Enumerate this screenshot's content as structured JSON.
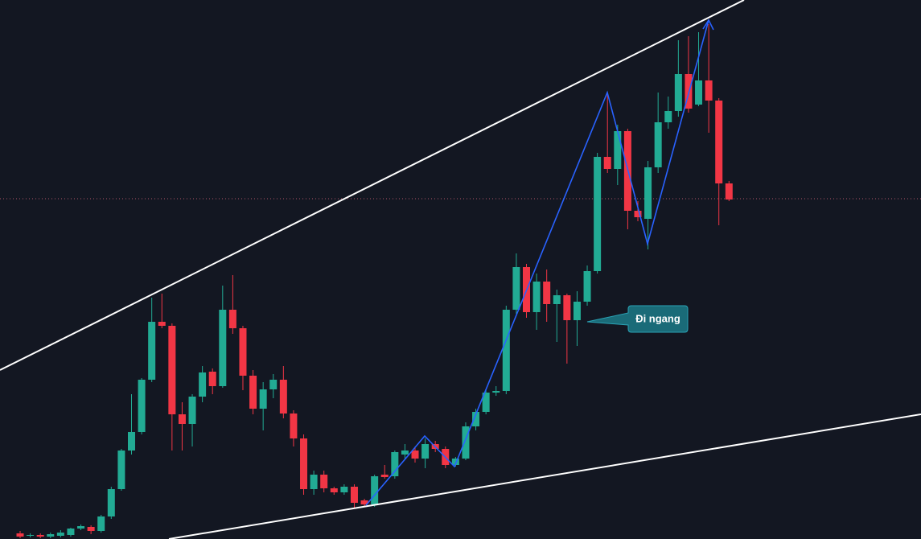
{
  "chart_data": {
    "type": "candlestick",
    "open": [
      7,
      4,
      5,
      3,
      4,
      5,
      13,
      15,
      10,
      28,
      62,
      110,
      133,
      198,
      270,
      265,
      155,
      143,
      177,
      208,
      190,
      285,
      262,
      203,
      162,
      186,
      198,
      156,
      125,
      62,
      80,
      63,
      58,
      65,
      48,
      43,
      80,
      78,
      105,
      110,
      100,
      118,
      112,
      92,
      100,
      140,
      158,
      182,
      184,
      285,
      338,
      282,
      320,
      292,
      303,
      272,
      295,
      333,
      475,
      460,
      507,
      408,
      398,
      462,
      518,
      532,
      578,
      540,
      570,
      545,
      442
    ],
    "high": [
      10,
      7,
      7,
      8,
      11,
      14,
      18,
      17,
      30,
      65,
      112,
      180,
      200,
      300,
      305,
      268,
      170,
      180,
      215,
      212,
      315,
      328,
      265,
      210,
      195,
      205,
      215,
      160,
      130,
      85,
      85,
      65,
      68,
      68,
      50,
      80,
      92,
      110,
      118,
      115,
      125,
      122,
      115,
      102,
      145,
      162,
      185,
      190,
      290,
      355,
      342,
      330,
      335,
      310,
      305,
      308,
      340,
      480,
      555,
      515,
      510,
      420,
      470,
      555,
      550,
      620,
      625,
      630,
      640,
      548,
      445
    ],
    "low": [
      1,
      2,
      1,
      1,
      2,
      3,
      11,
      6,
      8,
      25,
      60,
      105,
      130,
      195,
      262,
      110,
      110,
      115,
      170,
      180,
      188,
      255,
      185,
      155,
      135,
      175,
      150,
      115,
      55,
      55,
      58,
      55,
      55,
      38,
      40,
      40,
      75,
      75,
      100,
      95,
      88,
      108,
      88,
      90,
      98,
      135,
      155,
      178,
      180,
      280,
      275,
      260,
      270,
      245,
      218,
      240,
      290,
      330,
      455,
      440,
      385,
      395,
      360,
      455,
      510,
      525,
      530,
      538,
      505,
      390,
      420
    ],
    "close": [
      3,
      5,
      3,
      6,
      8,
      13,
      16,
      10,
      28,
      62,
      110,
      133,
      198,
      270,
      265,
      155,
      143,
      177,
      207,
      190,
      285,
      262,
      203,
      162,
      186,
      198,
      156,
      125,
      62,
      80,
      63,
      58,
      65,
      45,
      43,
      78,
      77,
      108,
      110,
      100,
      118,
      112,
      92,
      100,
      140,
      158,
      182,
      184,
      285,
      338,
      282,
      320,
      292,
      303,
      272,
      295,
      333,
      475,
      460,
      507,
      408,
      400,
      462,
      518,
      532,
      578,
      535,
      570,
      545,
      442,
      422
    ],
    "up_color": "#22ab94",
    "down_color": "#f23645",
    "ylim": [
      0,
      670
    ],
    "price_line": 423,
    "annotation": "Đi ngang"
  }
}
